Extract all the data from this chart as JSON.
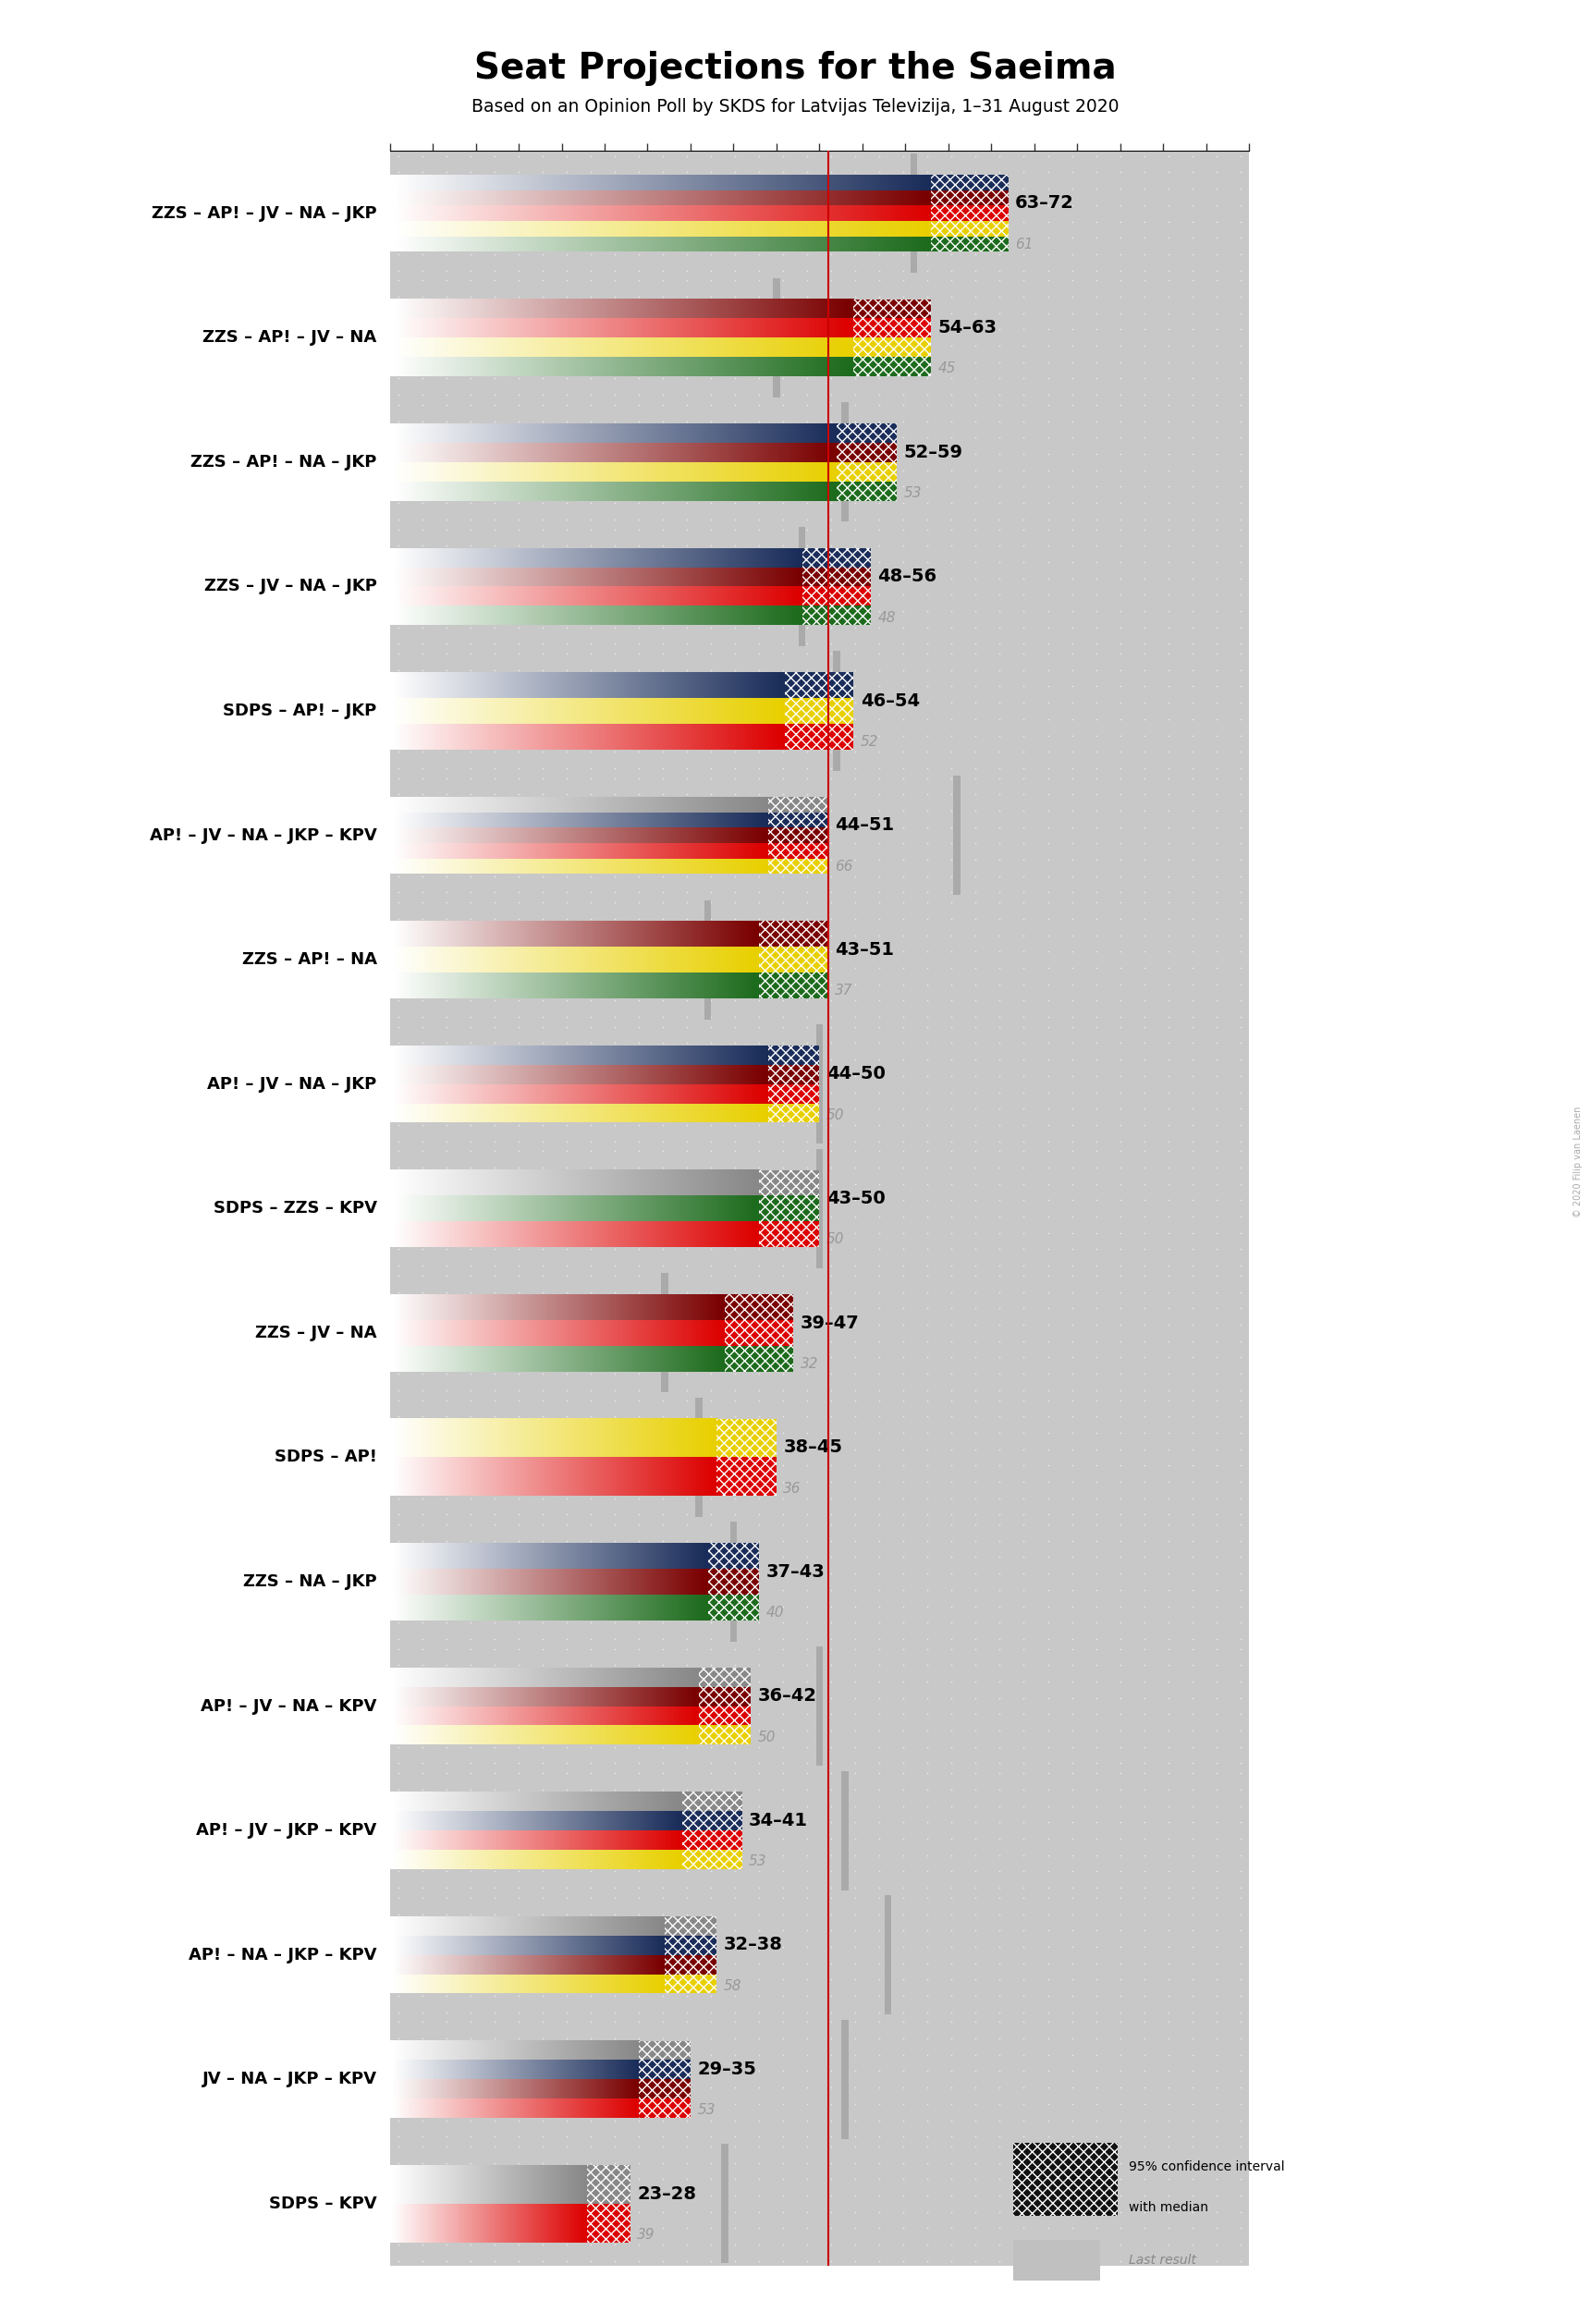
{
  "title": "Seat Projections for the Saeima",
  "subtitle": "Based on an Opinion Poll by SKDS for Latvijas Televizija, 1–31 August 2020",
  "majority_line": 51,
  "total_seats": 100,
  "coalitions": [
    {
      "name": "ZZS – AP! – JV – NA – JKP",
      "range_low": 63,
      "range_high": 72,
      "last_result": 61,
      "parties": [
        "ZZS",
        "AP!",
        "JV",
        "NA",
        "JKP"
      ],
      "colors": [
        "#1d6b1d",
        "#e8d000",
        "#dd0000",
        "#7a0000",
        "#1a2d5a"
      ],
      "underline": false
    },
    {
      "name": "ZZS – AP! – JV – NA",
      "range_low": 54,
      "range_high": 63,
      "last_result": 45,
      "parties": [
        "ZZS",
        "AP!",
        "JV",
        "NA"
      ],
      "colors": [
        "#1d6b1d",
        "#e8d000",
        "#dd0000",
        "#7a0000"
      ],
      "underline": false
    },
    {
      "name": "ZZS – AP! – NA – JKP",
      "range_low": 52,
      "range_high": 59,
      "last_result": 53,
      "parties": [
        "ZZS",
        "AP!",
        "NA",
        "JKP"
      ],
      "colors": [
        "#1d6b1d",
        "#e8d000",
        "#7a0000",
        "#1a2d5a"
      ],
      "underline": false
    },
    {
      "name": "ZZS – JV – NA – JKP",
      "range_low": 48,
      "range_high": 56,
      "last_result": 48,
      "parties": [
        "ZZS",
        "JV",
        "NA",
        "JKP"
      ],
      "colors": [
        "#1d6b1d",
        "#dd0000",
        "#7a0000",
        "#1a2d5a"
      ],
      "underline": false
    },
    {
      "name": "SDPS – AP! – JKP",
      "range_low": 46,
      "range_high": 54,
      "last_result": 52,
      "parties": [
        "SDPS",
        "AP!",
        "JKP"
      ],
      "colors": [
        "#dd0000",
        "#e8d000",
        "#1a2d5a"
      ],
      "underline": false
    },
    {
      "name": "AP! – JV – NA – JKP – KPV",
      "range_low": 44,
      "range_high": 51,
      "last_result": 66,
      "parties": [
        "AP!",
        "JV",
        "NA",
        "JKP",
        "KPV"
      ],
      "colors": [
        "#e8d000",
        "#dd0000",
        "#7a0000",
        "#1a2d5a",
        "#888888"
      ],
      "underline": true
    },
    {
      "name": "ZZS – AP! – NA",
      "range_low": 43,
      "range_high": 51,
      "last_result": 37,
      "parties": [
        "ZZS",
        "AP!",
        "NA"
      ],
      "colors": [
        "#1d6b1d",
        "#e8d000",
        "#7a0000"
      ],
      "underline": false
    },
    {
      "name": "AP! – JV – NA – JKP",
      "range_low": 44,
      "range_high": 50,
      "last_result": 50,
      "parties": [
        "AP!",
        "JV",
        "NA",
        "JKP"
      ],
      "colors": [
        "#e8d000",
        "#dd0000",
        "#7a0000",
        "#1a2d5a"
      ],
      "underline": false
    },
    {
      "name": "SDPS – ZZS – KPV",
      "range_low": 43,
      "range_high": 50,
      "last_result": 50,
      "parties": [
        "SDPS",
        "ZZS",
        "KPV"
      ],
      "colors": [
        "#dd0000",
        "#1d6b1d",
        "#888888"
      ],
      "underline": false
    },
    {
      "name": "ZZS – JV – NA",
      "range_low": 39,
      "range_high": 47,
      "last_result": 32,
      "parties": [
        "ZZS",
        "JV",
        "NA"
      ],
      "colors": [
        "#1d6b1d",
        "#dd0000",
        "#7a0000"
      ],
      "underline": false
    },
    {
      "name": "SDPS – AP!",
      "range_low": 38,
      "range_high": 45,
      "last_result": 36,
      "parties": [
        "SDPS",
        "AP!"
      ],
      "colors": [
        "#dd0000",
        "#e8d000"
      ],
      "underline": false
    },
    {
      "name": "ZZS – NA – JKP",
      "range_low": 37,
      "range_high": 43,
      "last_result": 40,
      "parties": [
        "ZZS",
        "NA",
        "JKP"
      ],
      "colors": [
        "#1d6b1d",
        "#7a0000",
        "#1a2d5a"
      ],
      "underline": false
    },
    {
      "name": "AP! – JV – NA – KPV",
      "range_low": 36,
      "range_high": 42,
      "last_result": 50,
      "parties": [
        "AP!",
        "JV",
        "NA",
        "KPV"
      ],
      "colors": [
        "#e8d000",
        "#dd0000",
        "#7a0000",
        "#888888"
      ],
      "underline": false
    },
    {
      "name": "AP! – JV – JKP – KPV",
      "range_low": 34,
      "range_high": 41,
      "last_result": 53,
      "parties": [
        "AP!",
        "JV",
        "JKP",
        "KPV"
      ],
      "colors": [
        "#e8d000",
        "#dd0000",
        "#1a2d5a",
        "#888888"
      ],
      "underline": false
    },
    {
      "name": "AP! – NA – JKP – KPV",
      "range_low": 32,
      "range_high": 38,
      "last_result": 58,
      "parties": [
        "AP!",
        "NA",
        "JKP",
        "KPV"
      ],
      "colors": [
        "#e8d000",
        "#7a0000",
        "#1a2d5a",
        "#888888"
      ],
      "underline": false
    },
    {
      "name": "JV – NA – JKP – KPV",
      "range_low": 29,
      "range_high": 35,
      "last_result": 53,
      "parties": [
        "JV",
        "NA",
        "JKP",
        "KPV"
      ],
      "colors": [
        "#dd0000",
        "#7a0000",
        "#1a2d5a",
        "#888888"
      ],
      "underline": false
    },
    {
      "name": "SDPS – KPV",
      "range_low": 23,
      "range_high": 28,
      "last_result": 39,
      "parties": [
        "SDPS",
        "KPV"
      ],
      "colors": [
        "#dd0000",
        "#888888"
      ],
      "underline": false
    }
  ],
  "majority_color": "#cc0000",
  "background_color": "#ffffff",
  "dot_bg_color": "#c8c8c8",
  "dot_color": "#e8e8e8",
  "last_result_color": "#aaaaaa",
  "copyright": "© 2020 Filip van Laenen"
}
